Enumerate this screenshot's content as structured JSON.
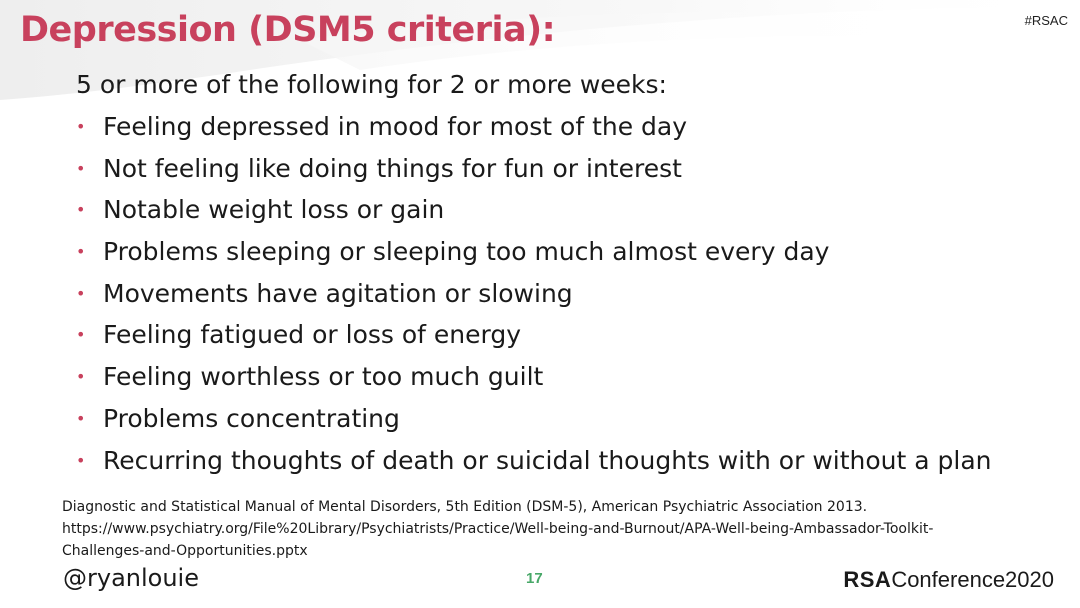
{
  "slide": {
    "hashtag": "#RSAC",
    "title": "Depression (DSM5 criteria):",
    "intro": "5 or more of the following for 2 or more weeks:",
    "bullet_color": "#c8415d",
    "title_color": "#c8415d",
    "items": [
      "Feeling depressed in mood for most of the day",
      "Not feeling like doing things for fun or interest",
      "Notable weight loss or gain",
      "Problems sleeping or sleeping too much almost every day",
      "Movements have agitation or slowing",
      "Feeling fatigued or loss of energy",
      "Feeling worthless or too much guilt",
      "Problems concentrating",
      "Recurring thoughts of death or suicidal thoughts with or without a plan"
    ],
    "citation": {
      "line1": "Diagnostic and Statistical Manual of Mental Disorders, 5th Edition (DSM-5), American Psychiatric Association 2013.",
      "line2": "https://www.psychiatry.org/File%20Library/Psychiatrists/Practice/Well-being-and-Burnout/APA-Well-being-Ambassador-Toolkit-",
      "line3": "Challenges-and-Opportunities.pptx"
    }
  },
  "footer": {
    "handle": "@ryanlouie",
    "page_number": "17",
    "page_number_color": "#48a868",
    "brand_prefix": "RSA",
    "brand_suffix": "Conference2020"
  }
}
